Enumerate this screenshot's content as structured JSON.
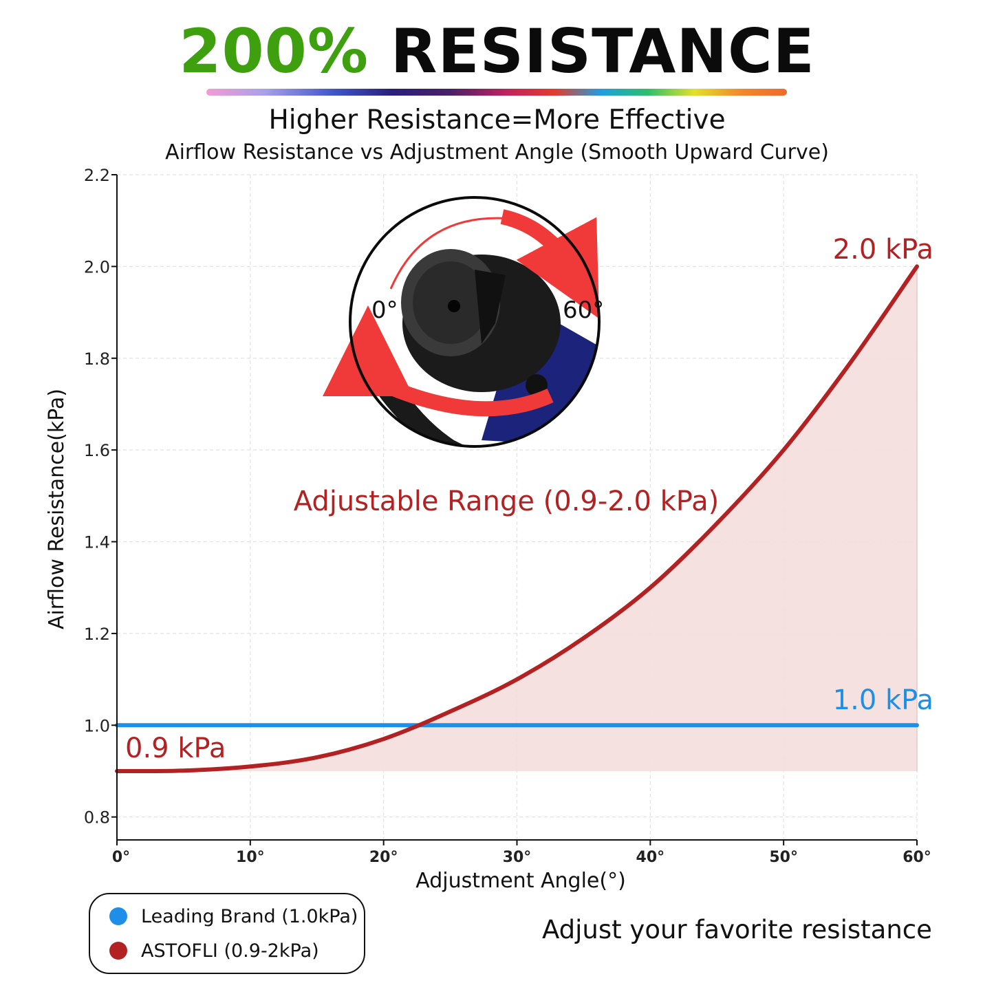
{
  "headline": {
    "percent": "200%",
    "word": "RESISTANCE"
  },
  "subtitle": "Higher Resistance=More Effective",
  "subtitle2": "Airflow Resistance vs Adjustment Angle (Smooth Upward Curve)",
  "colors": {
    "astofli": "#b22222",
    "leading": "#1e8fe8",
    "fill": "#f5dede",
    "accent_green": "#3ea00f"
  },
  "chart_data": {
    "type": "line",
    "xlabel": "Adjustment Angle(°)",
    "ylabel": "Airflow Resistance(kPa)",
    "xlim": [
      0,
      60
    ],
    "ylim": [
      0.75,
      2.2
    ],
    "x_ticks": [
      0,
      10,
      20,
      30,
      40,
      50,
      60
    ],
    "x_tick_labels": [
      "0°",
      "10°",
      "20°",
      "30°",
      "40°",
      "50°",
      "60°"
    ],
    "y_ticks": [
      0.8,
      1.0,
      1.2,
      1.4,
      1.6,
      1.8,
      2.0,
      2.2
    ],
    "y_tick_labels": [
      "0.8",
      "1.0",
      "1.2",
      "1.4",
      "1.6",
      "1.8",
      "2.0",
      "2.2"
    ],
    "grid": true,
    "series": [
      {
        "name": "Leading Brand (1.0kPa)",
        "x": [
          0,
          60
        ],
        "y": [
          1.0,
          1.0
        ],
        "color": "#1e8fe8"
      },
      {
        "name": "ASTOFLI (0.9-2kPa)",
        "x": [
          0,
          5,
          10,
          15,
          20,
          25,
          30,
          35,
          40,
          45,
          50,
          55,
          60
        ],
        "y": [
          0.9,
          0.901,
          0.91,
          0.93,
          0.97,
          1.03,
          1.1,
          1.19,
          1.3,
          1.44,
          1.6,
          1.79,
          2.0
        ],
        "color": "#b22222",
        "fill_baseline": 0.9
      }
    ],
    "annotations": {
      "start": "0.9 kPa",
      "end": "2.0 kPa",
      "leading": "1.0 kPa",
      "range": "Adjustable Range (0.9-2.0 kPa)"
    },
    "legend_position": "bottom-left"
  },
  "inset": {
    "label_start": "0°",
    "label_end": "60°"
  },
  "legend": [
    {
      "label": "Leading Brand (1.0kPa)",
      "color": "#1e8fe8"
    },
    {
      "label": "ASTOFLI (0.9-2kPa)",
      "color": "#b22222"
    }
  ],
  "footnote": "Adjust your favorite resistance"
}
